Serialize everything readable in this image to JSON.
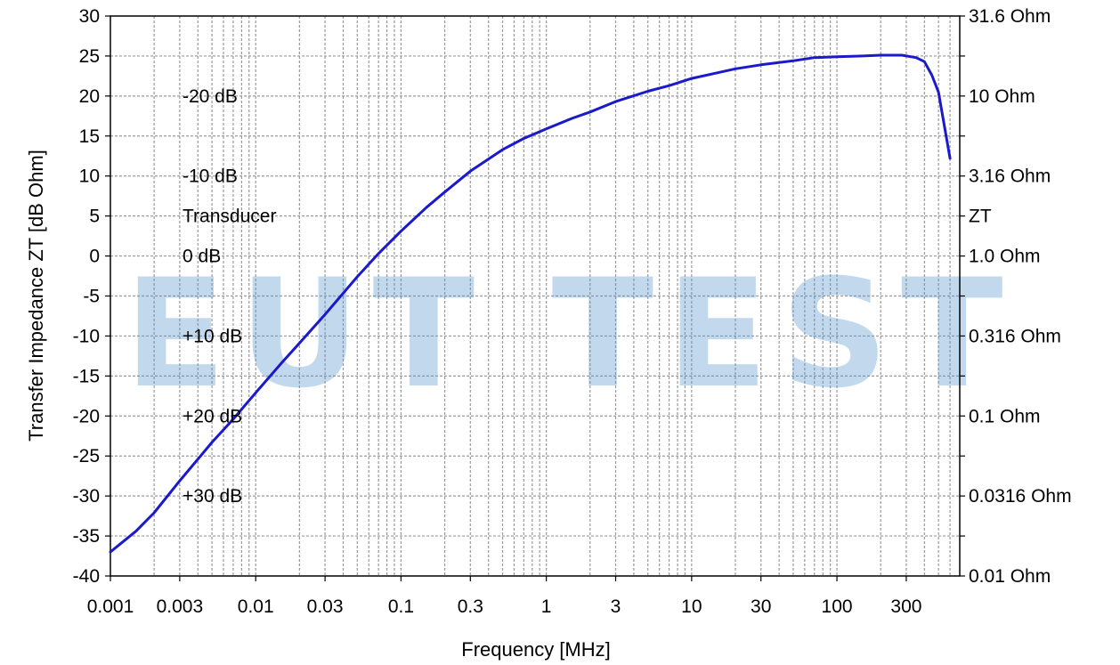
{
  "chart_data": {
    "type": "line",
    "xlabel": "Frequency [MHz]",
    "ylabel": "Transfer Impedance ZT [dB Ohm]",
    "xscale": "log",
    "xlim": [
      0.001,
      700
    ],
    "ylim": [
      -40,
      30
    ],
    "grid": true,
    "x_ticks": [
      {
        "value": 0.001,
        "label": "0.001"
      },
      {
        "value": 0.003,
        "label": "0.003"
      },
      {
        "value": 0.01,
        "label": "0.01"
      },
      {
        "value": 0.03,
        "label": "0.03"
      },
      {
        "value": 0.1,
        "label": "0.1"
      },
      {
        "value": 0.3,
        "label": "0.3"
      },
      {
        "value": 1,
        "label": "1"
      },
      {
        "value": 3,
        "label": "3"
      },
      {
        "value": 10,
        "label": "10"
      },
      {
        "value": 30,
        "label": "30"
      },
      {
        "value": 100,
        "label": "100"
      },
      {
        "value": 300,
        "label": "300"
      }
    ],
    "y_ticks": [
      {
        "value": 30,
        "label": "30"
      },
      {
        "value": 25,
        "label": "25"
      },
      {
        "value": 20,
        "label": "20"
      },
      {
        "value": 15,
        "label": "15"
      },
      {
        "value": 10,
        "label": "10"
      },
      {
        "value": 5,
        "label": "5"
      },
      {
        "value": 0,
        "label": "0"
      },
      {
        "value": -5,
        "label": "-5"
      },
      {
        "value": -10,
        "label": "-10"
      },
      {
        "value": -15,
        "label": "-15"
      },
      {
        "value": -20,
        "label": "-20"
      },
      {
        "value": -25,
        "label": "-25"
      },
      {
        "value": -30,
        "label": "-30"
      },
      {
        "value": -35,
        "label": "-35"
      },
      {
        "value": -40,
        "label": "-40"
      }
    ],
    "right_axis_labels": [
      {
        "value": 30,
        "label": "31.6 Ohm"
      },
      {
        "value": 20,
        "label": "10 Ohm"
      },
      {
        "value": 10,
        "label": "3.16 Ohm"
      },
      {
        "value": 5,
        "label": "ZT"
      },
      {
        "value": 0,
        "label": "1.0 Ohm"
      },
      {
        "value": -10,
        "label": "0.316 Ohm"
      },
      {
        "value": -20,
        "label": "0.1 Ohm"
      },
      {
        "value": -30,
        "label": "0.0316 Ohm"
      },
      {
        "value": -40,
        "label": "0.01 Ohm"
      }
    ],
    "annotations": [
      {
        "value": 20,
        "label": "-20 dB"
      },
      {
        "value": 10,
        "label": "-10 dB"
      },
      {
        "value": 5,
        "label": "Transducer"
      },
      {
        "value": 0,
        "label": "0 dB"
      },
      {
        "value": -10,
        "label": "+10 dB"
      },
      {
        "value": -20,
        "label": "+20 dB"
      },
      {
        "value": -30,
        "label": "+30 dB"
      }
    ],
    "watermark": "EUT TEST",
    "series": [
      {
        "color": "#1a1acc",
        "x": [
          0.001,
          0.0015,
          0.002,
          0.003,
          0.005,
          0.007,
          0.01,
          0.015,
          0.02,
          0.03,
          0.05,
          0.07,
          0.1,
          0.15,
          0.2,
          0.3,
          0.5,
          0.7,
          1,
          1.5,
          2,
          3,
          5,
          7,
          10,
          15,
          20,
          30,
          50,
          70,
          100,
          150,
          200,
          280,
          350,
          400,
          450,
          500,
          600
        ],
        "values": [
          -37,
          -34.4,
          -32.1,
          -28.1,
          -23.3,
          -20.4,
          -17.1,
          -13.4,
          -10.9,
          -7.3,
          -2.6,
          0.3,
          3.1,
          6.1,
          8.0,
          10.6,
          13.3,
          14.7,
          15.9,
          17.2,
          18.0,
          19.3,
          20.6,
          21.3,
          22.2,
          22.9,
          23.4,
          23.9,
          24.4,
          24.8,
          24.9,
          25.0,
          25.1,
          25.1,
          24.8,
          24.3,
          22.6,
          20.5,
          12.2
        ]
      }
    ]
  }
}
